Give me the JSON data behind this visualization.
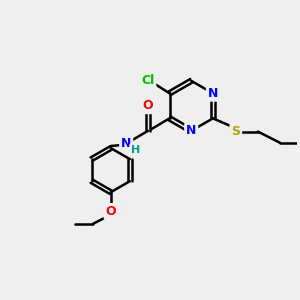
{
  "background_color": "#efefef",
  "bond_color": "#000000",
  "bond_width": 1.8,
  "atom_colors": {
    "C": "#000000",
    "N": "#0000ff",
    "O": "#ff0000",
    "S": "#aaaa00",
    "Cl": "#00bb00",
    "H": "#009999"
  },
  "font_size": 9,
  "figsize": [
    3.0,
    3.0
  ],
  "dpi": 100,
  "xlim": [
    0,
    10
  ],
  "ylim": [
    0,
    10
  ]
}
